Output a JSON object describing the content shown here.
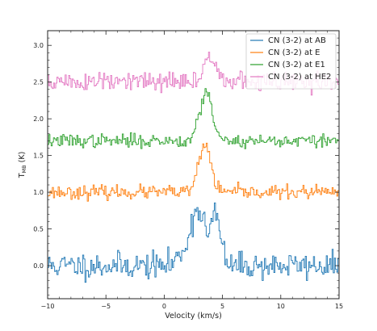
{
  "chart_data": {
    "type": "line",
    "style": "step",
    "xlabel": "Velocity (km/s)",
    "ylabel_main": "T",
    "ylabel_sub": "MB",
    "ylabel_unit": " (K)",
    "xlim": [
      -10,
      15
    ],
    "ylim": [
      -0.45,
      3.2
    ],
    "xticks": [
      -10,
      -5,
      0,
      5,
      10,
      15
    ],
    "xtick_labels": [
      "−10",
      "−5",
      "0",
      "5",
      "10",
      "15"
    ],
    "yticks": [
      0.0,
      0.5,
      1.0,
      1.5,
      2.0,
      2.5,
      3.0
    ],
    "ytick_labels": [
      "0.0",
      "0.5",
      "1.0",
      "1.5",
      "2.0",
      "2.5",
      "3.0"
    ],
    "legend_position": "top-right",
    "series": [
      {
        "name": "CN (3-2) at AB",
        "color": "#1f77b4",
        "baseline": 0.0,
        "peaks": [
          {
            "center": 2.9,
            "amp": 0.72,
            "sigma": 0.55
          },
          {
            "center": 3.9,
            "amp": 0.62,
            "sigma": 0.35
          },
          {
            "center": 4.6,
            "amp": 0.52,
            "sigma": 0.35
          },
          {
            "center": 1.8,
            "amp": 0.18,
            "sigma": 0.6
          }
        ],
        "dip": {
          "center": 3.8,
          "depth": 0.45,
          "sigma": 0.2
        },
        "noise": 0.09,
        "seed": 11
      },
      {
        "name": "CN (3-2) at E",
        "color": "#ff7f0e",
        "baseline": 1.0,
        "peaks": [
          {
            "center": 3.6,
            "amp": 0.62,
            "sigma": 0.45
          },
          {
            "center": 2.9,
            "amp": 0.18,
            "sigma": 0.3
          }
        ],
        "noise": 0.045,
        "seed": 23
      },
      {
        "name": "CN (3-2) at E1",
        "color": "#2ca02c",
        "baseline": 1.7,
        "peaks": [
          {
            "center": 3.7,
            "amp": 0.66,
            "sigma": 0.45
          },
          {
            "center": 2.9,
            "amp": 0.2,
            "sigma": 0.3
          }
        ],
        "noise": 0.045,
        "seed": 37
      },
      {
        "name": "CN (3-2) at HE2",
        "color": "#e377c2",
        "baseline": 2.5,
        "peaks": [
          {
            "center": 3.9,
            "amp": 0.38,
            "sigma": 0.4
          },
          {
            "center": 4.6,
            "amp": 0.15,
            "sigma": 0.3
          }
        ],
        "noise": 0.07,
        "seed": 51
      }
    ]
  }
}
